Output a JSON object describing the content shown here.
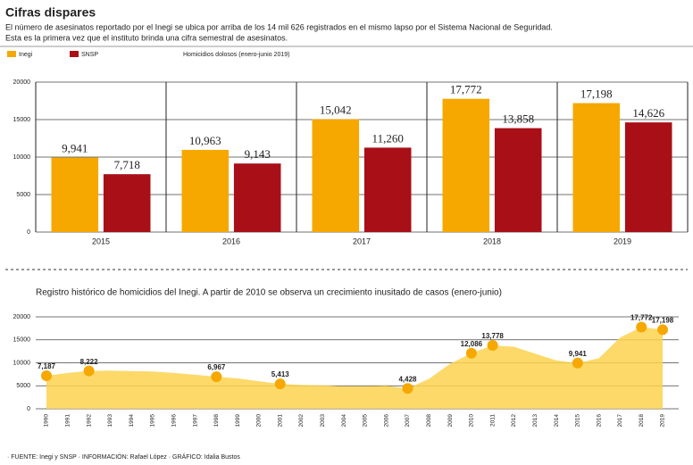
{
  "header": {
    "title": "Cifras dispares",
    "subtitle": [
      "El número de asesinatos reportado por el Inegi se ubica por arriba de los 14 mil 626 registrados en el mismo lapso por el Sistema Nacional de Seguridad.",
      "Esta es la primera vez que el instituto brinda una cifra semestral de asesinatos."
    ]
  },
  "chart_data": [
    {
      "type": "bar",
      "legend_note": "Homicidios dolosos (enero-junio 2019)",
      "categories": [
        "2015",
        "2016",
        "2017",
        "2018",
        "2019"
      ],
      "series": [
        {
          "name": "Inegi",
          "color": "#f6a800",
          "values": [
            9941,
            10963,
            15042,
            17772,
            17198
          ],
          "value_labels": [
            "9,941",
            "10,963",
            "15,042",
            "17,772",
            "17,198"
          ]
        },
        {
          "name": "SNSP",
          "color": "#a80f16",
          "values": [
            7718,
            9143,
            11260,
            13858,
            14626
          ],
          "value_labels": [
            "7,718",
            "9,143",
            "11,260",
            "13,858",
            "14,626"
          ]
        }
      ],
      "ylim": [
        0,
        20000
      ],
      "yticks": [
        0,
        5000,
        10000,
        15000,
        20000
      ],
      "grid": true
    },
    {
      "type": "area",
      "title": "Registro histórico de homicidios del Inegi. A partir de 2010 se observa un crecimiento inusitado de casos (enero-junio)",
      "x": [
        1990,
        1991,
        1992,
        1993,
        1994,
        1995,
        1996,
        1997,
        1998,
        1999,
        2000,
        2001,
        2002,
        2003,
        2004,
        2005,
        2006,
        2007,
        2008,
        2009,
        2010,
        2011,
        2012,
        2013,
        2014,
        2015,
        2016,
        2017,
        2018,
        2019
      ],
      "xlim": [
        1990,
        2019
      ],
      "color": "#fcd24f",
      "marker_color": "#f6a800",
      "values": [
        7187,
        7800,
        8222,
        8300,
        8200,
        8100,
        7800,
        7400,
        6967,
        6600,
        6000,
        5413,
        5200,
        5100,
        4900,
        4900,
        5000,
        4428,
        6500,
        9800,
        12086,
        13778,
        13500,
        12000,
        10500,
        9941,
        11000,
        15500,
        17772,
        17198
      ],
      "value_labels": [
        "7,187",
        null,
        "8,222",
        null,
        null,
        null,
        null,
        null,
        "6,967",
        null,
        null,
        "5,413",
        null,
        null,
        null,
        null,
        null,
        "4,428",
        null,
        null,
        "12,086",
        "13,778",
        null,
        null,
        null,
        "9,941",
        null,
        null,
        "17,772",
        "17,198"
      ],
      "ylim": [
        0,
        20000
      ],
      "yticks": [
        0,
        5000,
        10000,
        15000,
        20000
      ],
      "grid": true
    }
  ],
  "footer": "· FUENTE: Inegi y SNSP · INFORMACIÓN: Rafael López · GRÁFICO: Idalia Bustos"
}
